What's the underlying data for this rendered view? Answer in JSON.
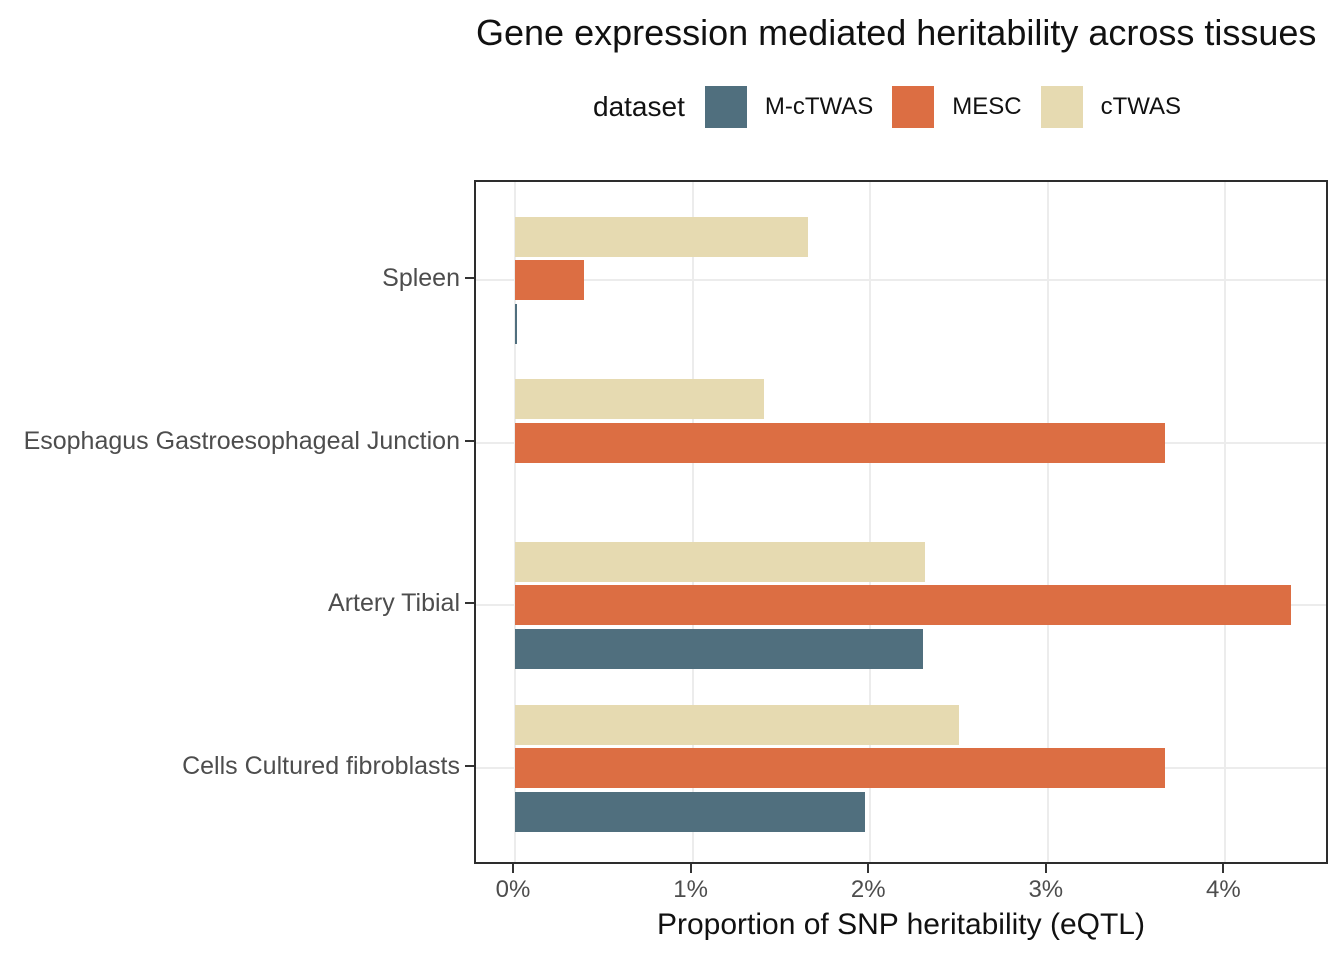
{
  "chart_data": {
    "type": "bar",
    "orientation": "horizontal",
    "title": "Gene expression mediated heritability across tissues",
    "xlabel": "Proportion of SNP heritability (eQTL)",
    "legend_title": "dataset",
    "legend_position": "top",
    "grid": true,
    "categories": [
      "Spleen",
      "Esophagus Gastroesophageal Junction",
      "Artery Tibial",
      "Cells Cultured fibroblasts"
    ],
    "series": [
      {
        "name": "M-cTWAS",
        "color": "#506f7e",
        "values": [
          0.01,
          null,
          2.3,
          1.97
        ]
      },
      {
        "name": "MESC",
        "color": "#dc6e43",
        "values": [
          0.39,
          3.66,
          4.37,
          3.66
        ]
      },
      {
        "name": "cTWAS",
        "color": "#e6dab1",
        "values": [
          1.65,
          1.4,
          2.31,
          2.5
        ]
      }
    ],
    "bar_order_top_to_bottom": [
      "cTWAS",
      "MESC",
      "M-cTWAS"
    ],
    "x_ticks": [
      {
        "value": 0,
        "label": "0%"
      },
      {
        "value": 1,
        "label": "1%"
      },
      {
        "value": 2,
        "label": "2%"
      },
      {
        "value": 3,
        "label": "3%"
      },
      {
        "value": 4,
        "label": "4%"
      }
    ],
    "xlim": [
      -0.22,
      4.59
    ],
    "value_unit": "percent"
  }
}
